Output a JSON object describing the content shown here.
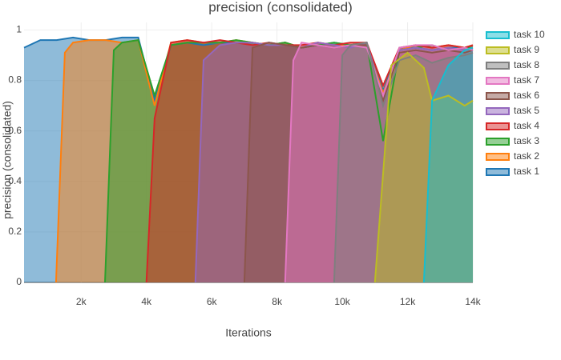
{
  "chart_data": {
    "type": "area",
    "title": "precision (consolidated)",
    "x_label": "Iterations",
    "y_label": "precision (consolidated)",
    "xlim": [
      250,
      14000
    ],
    "ylim": [
      0,
      1.03
    ],
    "xticks": [
      {
        "value": 2000,
        "label": "2k"
      },
      {
        "value": 4000,
        "label": "4k"
      },
      {
        "value": 6000,
        "label": "6k"
      },
      {
        "value": 8000,
        "label": "8k"
      },
      {
        "value": 10000,
        "label": "10k"
      },
      {
        "value": 12000,
        "label": "12k"
      },
      {
        "value": 14000,
        "label": "14k"
      }
    ],
    "yticks": [
      0,
      0.2,
      0.4,
      0.6,
      0.8,
      1
    ],
    "grid": true,
    "legend": "top-right",
    "legend_reversed": true,
    "series": [
      {
        "name": "task 1",
        "color": "#1f77b4",
        "x": [
          250,
          750,
          1250,
          1750,
          2250,
          2750,
          3250,
          3750,
          4250,
          4750,
          5250,
          5750,
          6250,
          6750,
          7250,
          7750,
          8250,
          8750,
          9250,
          9750,
          10250,
          10750,
          11250,
          11750,
          12250,
          12750,
          13250,
          13750,
          14000
        ],
        "values": [
          0.93,
          0.96,
          0.96,
          0.97,
          0.96,
          0.96,
          0.97,
          0.97,
          0.72,
          0.94,
          0.95,
          0.94,
          0.95,
          0.95,
          0.95,
          0.94,
          0.95,
          0.93,
          0.94,
          0.95,
          0.94,
          0.95,
          0.76,
          0.93,
          0.93,
          0.92,
          0.93,
          0.93,
          0.94
        ]
      },
      {
        "name": "task 2",
        "color": "#ff7f0e",
        "x": [
          1230,
          1500,
          1750,
          2250,
          2750,
          3250,
          3750,
          4250,
          4750,
          5250,
          5750,
          6250,
          6750,
          7250,
          7750,
          8250,
          8750,
          9250,
          9750,
          10250,
          10750,
          11250,
          11750,
          12250,
          12750,
          13250,
          13750,
          14000
        ],
        "values": [
          0,
          0.91,
          0.95,
          0.96,
          0.96,
          0.95,
          0.96,
          0.7,
          0.95,
          0.96,
          0.95,
          0.95,
          0.96,
          0.95,
          0.94,
          0.95,
          0.93,
          0.95,
          0.94,
          0.94,
          0.94,
          0.75,
          0.92,
          0.94,
          0.93,
          0.94,
          0.93,
          0.94
        ]
      },
      {
        "name": "task 3",
        "color": "#2ca02c",
        "x": [
          2730,
          3000,
          3250,
          3750,
          4250,
          4750,
          5250,
          5750,
          6250,
          6750,
          7250,
          7750,
          8250,
          8750,
          9250,
          9750,
          10250,
          10750,
          11250,
          11750,
          12250,
          12750,
          13250,
          13750,
          14000
        ],
        "values": [
          0,
          0.92,
          0.95,
          0.96,
          0.74,
          0.94,
          0.95,
          0.95,
          0.95,
          0.96,
          0.95,
          0.94,
          0.95,
          0.93,
          0.94,
          0.95,
          0.94,
          0.95,
          0.56,
          0.92,
          0.93,
          0.94,
          0.92,
          0.93,
          0.93
        ]
      },
      {
        "name": "task 4",
        "color": "#d62728",
        "x": [
          4000,
          4250,
          4750,
          5250,
          5750,
          6250,
          6750,
          7250,
          7750,
          8250,
          8750,
          9250,
          9750,
          10250,
          10750,
          11250,
          11750,
          12250,
          12750,
          13250,
          13750,
          14000
        ],
        "values": [
          0,
          0.65,
          0.95,
          0.96,
          0.95,
          0.96,
          0.95,
          0.94,
          0.95,
          0.94,
          0.94,
          0.95,
          0.94,
          0.95,
          0.95,
          0.78,
          0.93,
          0.94,
          0.93,
          0.94,
          0.93,
          0.94
        ]
      },
      {
        "name": "task 5",
        "color": "#9467bd",
        "x": [
          5500,
          5750,
          6250,
          6750,
          7250,
          7750,
          8250,
          8750,
          9250,
          9750,
          10250,
          10750,
          11250,
          11750,
          12250,
          12750,
          13250,
          13750,
          14000
        ],
        "values": [
          0,
          0.88,
          0.94,
          0.95,
          0.95,
          0.94,
          0.94,
          0.93,
          0.95,
          0.94,
          0.93,
          0.95,
          0.73,
          0.92,
          0.93,
          0.92,
          0.93,
          0.92,
          0.93
        ]
      },
      {
        "name": "task 6",
        "color": "#8c564b",
        "x": [
          7000,
          7250,
          7750,
          8250,
          8750,
          9250,
          9750,
          10250,
          10750,
          11250,
          11750,
          12250,
          12750,
          13250,
          13750,
          14000
        ],
        "values": [
          0,
          0.93,
          0.95,
          0.94,
          0.93,
          0.94,
          0.93,
          0.94,
          0.94,
          0.72,
          0.91,
          0.92,
          0.91,
          0.92,
          0.91,
          0.92
        ]
      },
      {
        "name": "task 7",
        "color": "#e377c2",
        "x": [
          8250,
          8500,
          8750,
          9250,
          9750,
          10250,
          10750,
          11250,
          11750,
          12250,
          12750,
          13250,
          13750,
          14000
        ],
        "values": [
          0,
          0.88,
          0.95,
          0.94,
          0.93,
          0.94,
          0.93,
          0.74,
          0.93,
          0.94,
          0.94,
          0.92,
          0.93,
          0.92
        ]
      },
      {
        "name": "task 8",
        "color": "#7f7f7f",
        "x": [
          9750,
          10000,
          10250,
          10750,
          11250,
          11750,
          12250,
          12750,
          13250,
          13750,
          14000
        ],
        "values": [
          0,
          0.9,
          0.94,
          0.95,
          0.7,
          0.88,
          0.9,
          0.87,
          0.89,
          0.9,
          0.91
        ]
      },
      {
        "name": "task 9",
        "color": "#bcbd22",
        "x": [
          11000,
          11500,
          12000,
          12500,
          12750,
          13250,
          13750,
          14000
        ],
        "values": [
          0,
          0.86,
          0.91,
          0.85,
          0.72,
          0.74,
          0.7,
          0.72
        ]
      },
      {
        "name": "task 10",
        "color": "#17becf",
        "x": [
          12500,
          12750,
          13250,
          13750,
          14000
        ],
        "values": [
          0,
          0.72,
          0.86,
          0.92,
          0.93
        ]
      }
    ]
  }
}
